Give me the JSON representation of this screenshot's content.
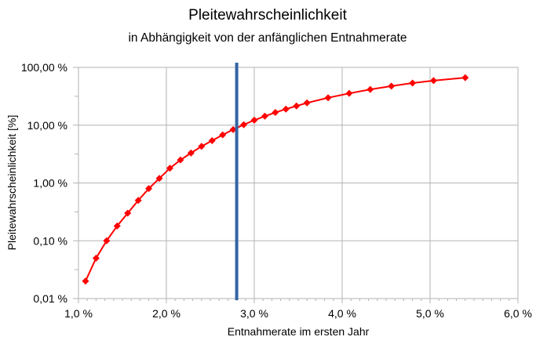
{
  "chart_data": {
    "type": "line",
    "title": "Pleitewahrscheinlichkeit",
    "subtitle": "in Abhängigkeit von der anfänglichen Entnahmerate",
    "xlabel": "Entnahmerate im ersten Jahr",
    "ylabel": "Pleitewahrscheinlichkeit [%]",
    "xlim": [
      1.0,
      6.0
    ],
    "ylim": [
      0.01,
      100
    ],
    "y_scale": "log",
    "grid": true,
    "legend": "none",
    "x_ticks": [
      {
        "value": 1.0,
        "label": "1,0 %"
      },
      {
        "value": 2.0,
        "label": "2,0 %"
      },
      {
        "value": 3.0,
        "label": "3,0 %"
      },
      {
        "value": 4.0,
        "label": "4,0 %"
      },
      {
        "value": 5.0,
        "label": "5,0 %"
      },
      {
        "value": 6.0,
        "label": "6,0 %"
      }
    ],
    "y_ticks": [
      {
        "value": 0.01,
        "label": "0,01 %"
      },
      {
        "value": 0.1,
        "label": "0,10 %"
      },
      {
        "value": 1,
        "label": "1,00 %"
      },
      {
        "value": 10,
        "label": "10,00 %"
      },
      {
        "value": 100,
        "label": "100,00 %"
      }
    ],
    "series": [
      {
        "color": "#ff0000",
        "marker": "diamond",
        "x": [
          1.08,
          1.2,
          1.32,
          1.44,
          1.56,
          1.68,
          1.8,
          1.92,
          2.04,
          2.16,
          2.28,
          2.4,
          2.52,
          2.64,
          2.76,
          2.88,
          3.0,
          3.12,
          3.24,
          3.36,
          3.48,
          3.6,
          3.84,
          4.08,
          4.32,
          4.56,
          4.8,
          5.04,
          5.4
        ],
        "y": [
          0.02,
          0.05,
          0.1,
          0.18,
          0.3,
          0.5,
          0.8,
          1.2,
          1.8,
          2.5,
          3.3,
          4.3,
          5.4,
          6.8,
          8.4,
          10.2,
          12.2,
          14.3,
          16.6,
          19.0,
          21.5,
          24.3,
          29.8,
          35.5,
          41.5,
          47.5,
          53.5,
          59.0,
          66.5
        ]
      }
    ],
    "reference_line": {
      "x": 2.8,
      "color": "#3465a4"
    }
  }
}
